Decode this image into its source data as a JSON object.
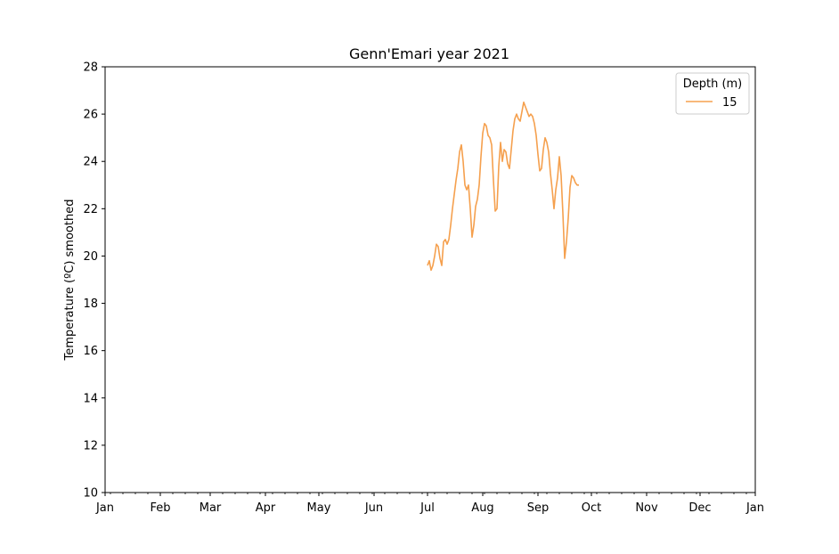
{
  "chart_data": {
    "type": "line",
    "title": "Genn'Emari year 2021",
    "xlabel": "",
    "ylabel": "Temperature (ºC) smoothed",
    "x_axis": {
      "type": "date",
      "range": [
        "2021-01-01",
        "2022-01-01"
      ],
      "tick_dates": [
        "2021-01-01",
        "2021-02-01",
        "2021-03-01",
        "2021-04-01",
        "2021-05-01",
        "2021-06-01",
        "2021-07-01",
        "2021-08-01",
        "2021-09-01",
        "2021-10-01",
        "2021-11-01",
        "2021-12-01",
        "2022-01-01"
      ],
      "tick_labels": [
        "Jan",
        "Feb",
        "Mar",
        "Apr",
        "May",
        "Jun",
        "Jul",
        "Aug",
        "Sep",
        "Oct",
        "Nov",
        "Dec",
        "Jan"
      ]
    },
    "ylim": [
      10,
      28
    ],
    "y_ticks": [
      10,
      12,
      14,
      16,
      18,
      20,
      22,
      24,
      26,
      28
    ],
    "grid": false,
    "legend": {
      "title": "Depth (m)",
      "placement": "top-right"
    },
    "series": [
      {
        "name": "15",
        "color": "#f5a04e",
        "points": [
          [
            "2021-07-01",
            19.6
          ],
          [
            "2021-07-02",
            19.8
          ],
          [
            "2021-07-03",
            19.4
          ],
          [
            "2021-07-04",
            19.6
          ],
          [
            "2021-07-05",
            20.0
          ],
          [
            "2021-07-06",
            20.5
          ],
          [
            "2021-07-07",
            20.4
          ],
          [
            "2021-07-08",
            19.9
          ],
          [
            "2021-07-09",
            19.6
          ],
          [
            "2021-07-10",
            20.6
          ],
          [
            "2021-07-11",
            20.7
          ],
          [
            "2021-07-12",
            20.5
          ],
          [
            "2021-07-13",
            20.7
          ],
          [
            "2021-07-14",
            21.3
          ],
          [
            "2021-07-15",
            22.0
          ],
          [
            "2021-07-16",
            22.6
          ],
          [
            "2021-07-17",
            23.2
          ],
          [
            "2021-07-18",
            23.7
          ],
          [
            "2021-07-19",
            24.4
          ],
          [
            "2021-07-20",
            24.7
          ],
          [
            "2021-07-21",
            24.0
          ],
          [
            "2021-07-22",
            23.0
          ],
          [
            "2021-07-23",
            22.8
          ],
          [
            "2021-07-24",
            23.0
          ],
          [
            "2021-07-25",
            22.0
          ],
          [
            "2021-07-26",
            20.8
          ],
          [
            "2021-07-27",
            21.3
          ],
          [
            "2021-07-28",
            22.1
          ],
          [
            "2021-07-29",
            22.4
          ],
          [
            "2021-07-30",
            23.0
          ],
          [
            "2021-07-31",
            24.2
          ],
          [
            "2021-08-01",
            25.2
          ],
          [
            "2021-08-02",
            25.6
          ],
          [
            "2021-08-03",
            25.5
          ],
          [
            "2021-08-04",
            25.1
          ],
          [
            "2021-08-05",
            25.0
          ],
          [
            "2021-08-06",
            24.7
          ],
          [
            "2021-08-07",
            23.2
          ],
          [
            "2021-08-08",
            21.9
          ],
          [
            "2021-08-09",
            22.0
          ],
          [
            "2021-08-10",
            23.8
          ],
          [
            "2021-08-11",
            24.8
          ],
          [
            "2021-08-12",
            24.0
          ],
          [
            "2021-08-13",
            24.5
          ],
          [
            "2021-08-14",
            24.4
          ],
          [
            "2021-08-15",
            23.9
          ],
          [
            "2021-08-16",
            23.7
          ],
          [
            "2021-08-17",
            24.5
          ],
          [
            "2021-08-18",
            25.3
          ],
          [
            "2021-08-19",
            25.8
          ],
          [
            "2021-08-20",
            26.0
          ],
          [
            "2021-08-21",
            25.8
          ],
          [
            "2021-08-22",
            25.7
          ],
          [
            "2021-08-23",
            26.1
          ],
          [
            "2021-08-24",
            26.5
          ],
          [
            "2021-08-25",
            26.3
          ],
          [
            "2021-08-26",
            26.1
          ],
          [
            "2021-08-27",
            25.9
          ],
          [
            "2021-08-28",
            26.0
          ],
          [
            "2021-08-29",
            25.9
          ],
          [
            "2021-08-30",
            25.6
          ],
          [
            "2021-08-31",
            25.1
          ],
          [
            "2021-09-01",
            24.3
          ],
          [
            "2021-09-02",
            23.6
          ],
          [
            "2021-09-03",
            23.7
          ],
          [
            "2021-09-04",
            24.5
          ],
          [
            "2021-09-05",
            25.0
          ],
          [
            "2021-09-06",
            24.8
          ],
          [
            "2021-09-07",
            24.4
          ],
          [
            "2021-09-08",
            23.5
          ],
          [
            "2021-09-09",
            22.8
          ],
          [
            "2021-09-10",
            22.0
          ],
          [
            "2021-09-11",
            22.8
          ],
          [
            "2021-09-12",
            23.3
          ],
          [
            "2021-09-13",
            24.2
          ],
          [
            "2021-09-14",
            23.4
          ],
          [
            "2021-09-15",
            21.8
          ],
          [
            "2021-09-16",
            19.9
          ],
          [
            "2021-09-17",
            20.6
          ],
          [
            "2021-09-18",
            21.6
          ],
          [
            "2021-09-19",
            22.9
          ],
          [
            "2021-09-20",
            23.4
          ],
          [
            "2021-09-21",
            23.3
          ],
          [
            "2021-09-22",
            23.1
          ],
          [
            "2021-09-23",
            23.0
          ],
          [
            "2021-09-24",
            23.0
          ]
        ]
      }
    ]
  }
}
